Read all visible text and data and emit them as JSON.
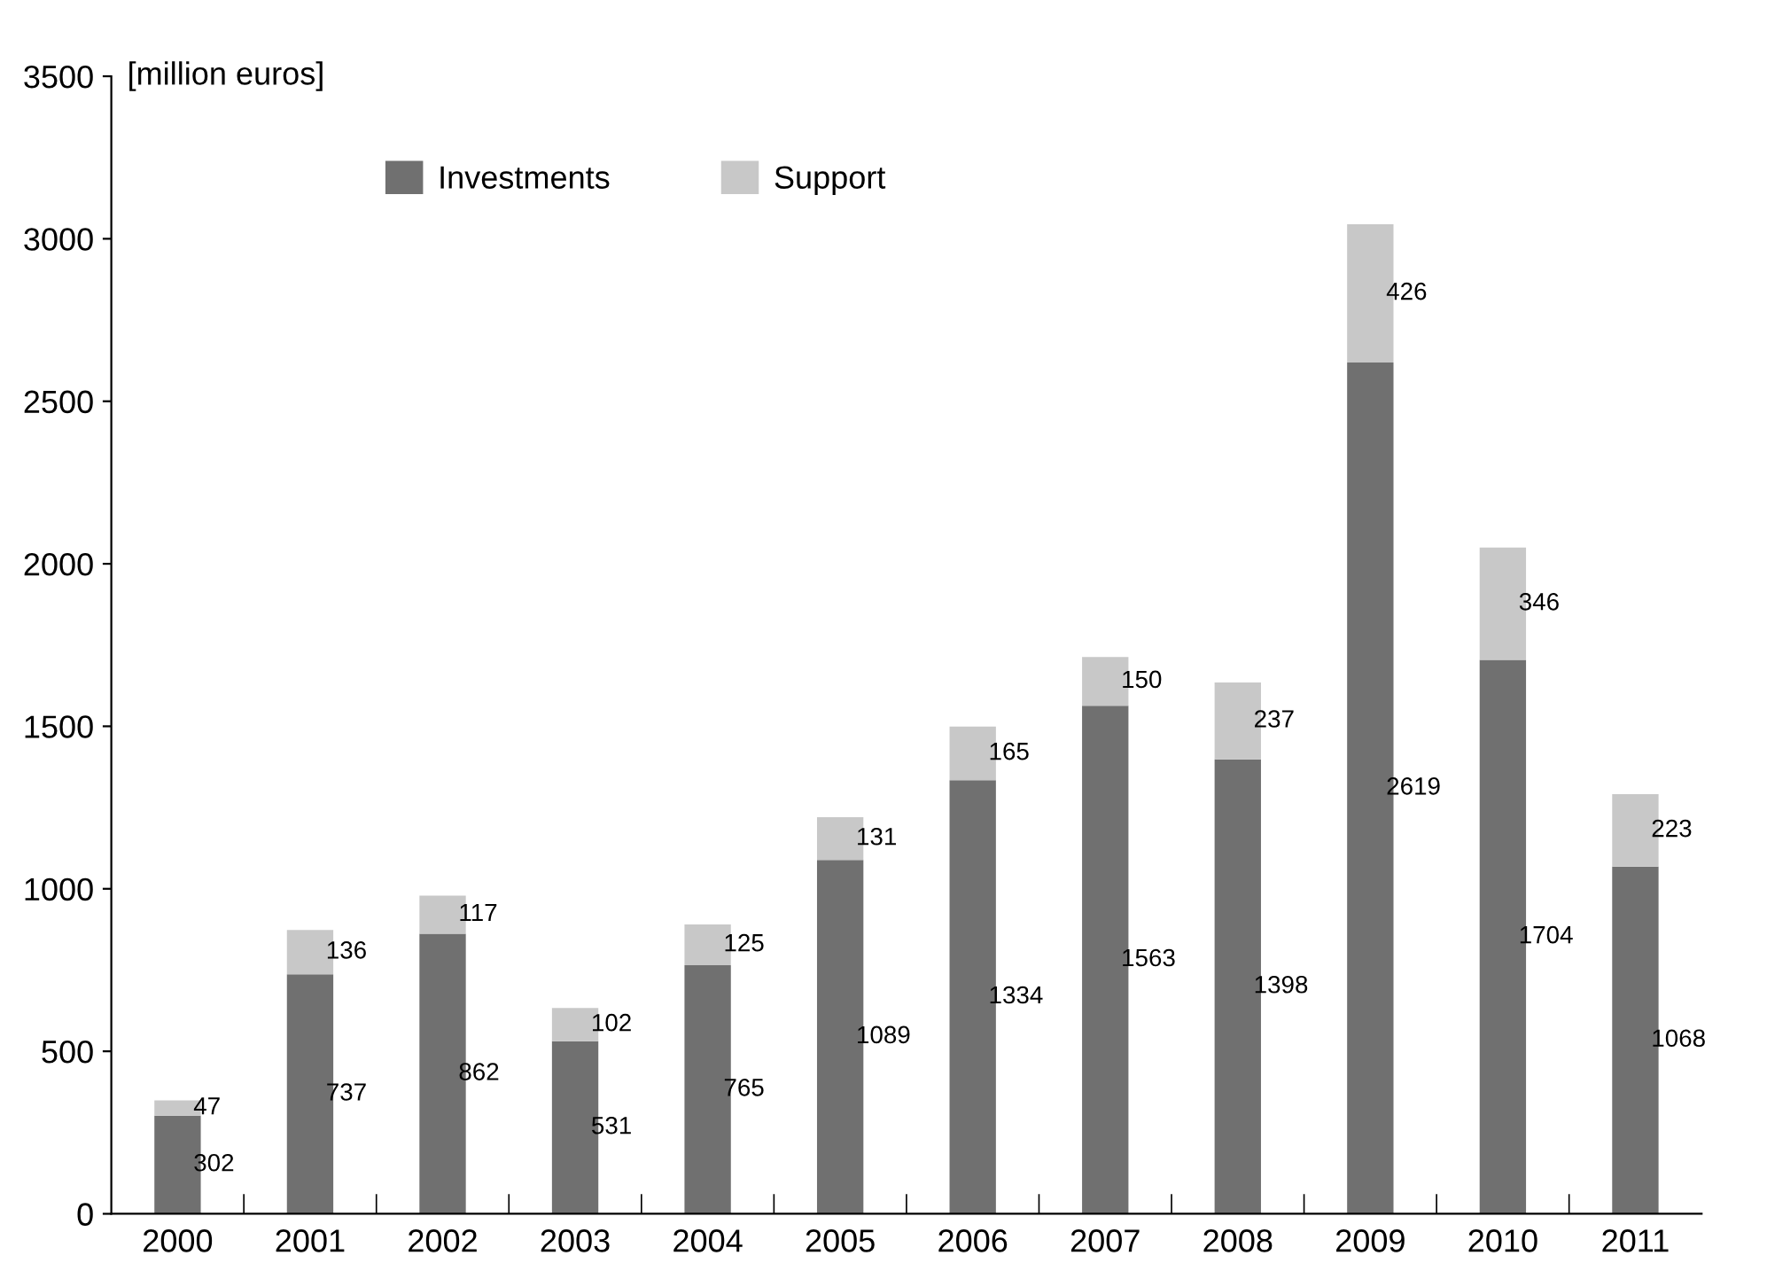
{
  "chart_data": {
    "type": "bar",
    "stacked": true,
    "ylabel": "[million euros]",
    "categories": [
      "2000",
      "2001",
      "2002",
      "2003",
      "2004",
      "2005",
      "2006",
      "2007",
      "2008",
      "2009",
      "2010",
      "2011"
    ],
    "series": [
      {
        "name": "Investments",
        "color": "#707070",
        "values": [
          302,
          737,
          862,
          531,
          765,
          1089,
          1334,
          1563,
          1398,
          2619,
          1704,
          1068
        ]
      },
      {
        "name": "Support",
        "color": "#c8c8c8",
        "values": [
          47,
          136,
          117,
          102,
          125,
          131,
          165,
          150,
          237,
          426,
          346,
          223
        ]
      }
    ],
    "ylim": [
      0,
      3500
    ],
    "yticks": [
      0,
      500,
      1000,
      1500,
      2000,
      2500,
      3000,
      3500
    ],
    "data_labels": true,
    "grid": false,
    "legend": "top"
  }
}
